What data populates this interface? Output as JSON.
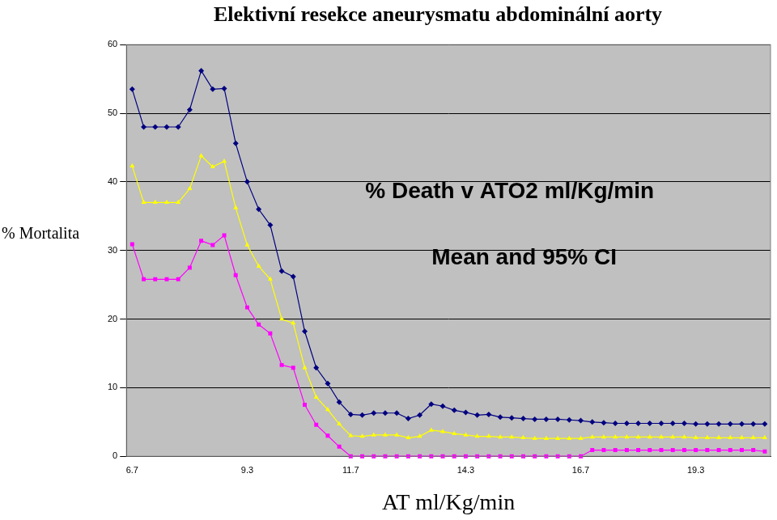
{
  "chart_data": {
    "type": "line",
    "title": "Elektivní resekce aneurysmatu abdominální aorty",
    "y_label": "% Mortalita",
    "x_label": "AT ml/Kg/min",
    "annotations": [
      "% Death v ATO2 ml/Kg/min",
      "Mean and 95% CI"
    ],
    "categories": [
      "6.7",
      null,
      null,
      null,
      null,
      null,
      null,
      null,
      null,
      null,
      "9.3",
      null,
      null,
      null,
      null,
      null,
      null,
      null,
      null,
      "11.7",
      null,
      null,
      null,
      null,
      null,
      null,
      null,
      null,
      null,
      "14.3",
      null,
      null,
      null,
      null,
      null,
      null,
      null,
      null,
      null,
      "16.7",
      null,
      null,
      null,
      null,
      null,
      null,
      null,
      null,
      null,
      "19.3",
      null,
      null,
      null,
      null,
      null,
      null
    ],
    "series": [
      {
        "color": "#000080",
        "marker": "diamond",
        "values": [
          53.5,
          48,
          48,
          48,
          48,
          50.5,
          56.2,
          53.5,
          53.6,
          45.6,
          40,
          36,
          33.7,
          27,
          26.2,
          18.2,
          12.9,
          10.6,
          7.9,
          6.1,
          6.0,
          6.3,
          6.3,
          6.3,
          5.5,
          6.0,
          7.6,
          7.3,
          6.7,
          6.4,
          6.0,
          6.1,
          5.7,
          5.6,
          5.5,
          5.4,
          5.4,
          5.4,
          5.3,
          5.2,
          5.0,
          4.9,
          4.8,
          4.8,
          4.8,
          4.8,
          4.8,
          4.8,
          4.8,
          4.7,
          4.7,
          4.7,
          4.7,
          4.7,
          4.7,
          4.7
        ]
      },
      {
        "color": "#ffff00",
        "marker": "triangle",
        "values": [
          42.3,
          37,
          37,
          37,
          37,
          39,
          43.8,
          42.2,
          43,
          36.2,
          30.8,
          27.7,
          25.8,
          20,
          19.4,
          12.9,
          8.6,
          6.8,
          4.7,
          3.0,
          2.9,
          3.1,
          3.1,
          3.1,
          2.7,
          2.9,
          3.8,
          3.6,
          3.3,
          3.1,
          2.9,
          2.9,
          2.8,
          2.8,
          2.7,
          2.6,
          2.6,
          2.6,
          2.6,
          2.6,
          2.8,
          2.8,
          2.8,
          2.8,
          2.8,
          2.8,
          2.8,
          2.8,
          2.8,
          2.7,
          2.7,
          2.7,
          2.7,
          2.7,
          2.7,
          2.7
        ]
      },
      {
        "color": "#ff00ff",
        "marker": "square",
        "values": [
          30.9,
          25.8,
          25.8,
          25.8,
          25.8,
          27.5,
          31.4,
          30.8,
          32.2,
          26.4,
          21.7,
          19.2,
          17.9,
          13.3,
          12.9,
          7.5,
          4.6,
          3.0,
          1.4,
          0,
          0,
          0,
          0,
          0,
          0,
          0,
          0,
          0,
          0,
          0,
          0,
          0,
          0,
          0,
          0,
          0,
          0,
          0,
          0,
          0,
          0.9,
          0.9,
          0.9,
          0.9,
          0.9,
          0.9,
          0.9,
          0.9,
          0.9,
          0.9,
          0.9,
          0.9,
          0.9,
          0.9,
          0.9,
          0.7
        ]
      }
    ],
    "ylim": [
      0,
      60
    ],
    "yticks": [
      0,
      10,
      20,
      30,
      40,
      50,
      60
    ],
    "grid": true
  }
}
